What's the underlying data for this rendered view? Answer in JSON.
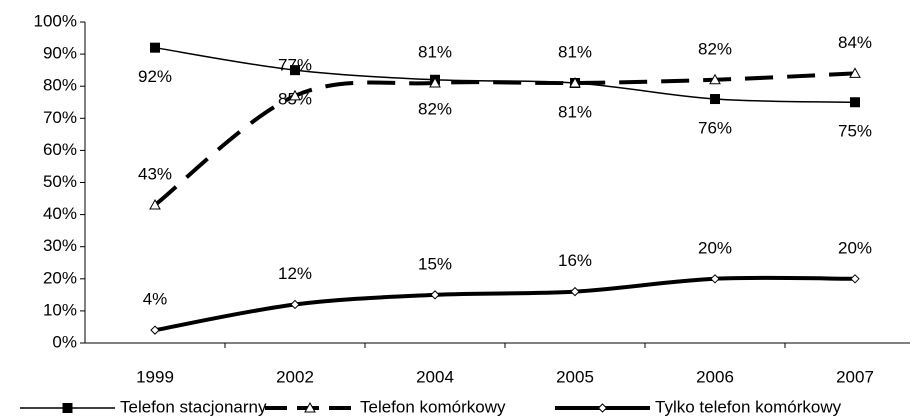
{
  "chart_data": {
    "type": "line",
    "categories": [
      "1999",
      "2002",
      "2004",
      "2005",
      "2006",
      "2007"
    ],
    "series": [
      {
        "name": "Telefon stacjonarny",
        "color": "#000000",
        "values": [
          92,
          85,
          82,
          81,
          76,
          75
        ],
        "value_labels": [
          "92%",
          "85%",
          "82%",
          "81%",
          "76%",
          "75%"
        ]
      },
      {
        "name": "Telefon komórkowy",
        "color": "#000000",
        "values": [
          43,
          77,
          81,
          81,
          82,
          84
        ],
        "value_labels": [
          "43%",
          "77%",
          "81%",
          "81%",
          "82%",
          "84%"
        ]
      },
      {
        "name": "Tylko telefon komórkowy",
        "color": "#000000",
        "values": [
          4,
          12,
          15,
          16,
          20,
          20
        ],
        "value_labels": [
          "4%",
          "12%",
          "15%",
          "16%",
          "20%",
          "20%"
        ]
      }
    ],
    "ylim": [
      0,
      100
    ],
    "yticks": [
      {
        "value": 0,
        "label": "0%"
      },
      {
        "value": 10,
        "label": "10%"
      },
      {
        "value": 20,
        "label": "20%"
      },
      {
        "value": 30,
        "label": "30%"
      },
      {
        "value": 40,
        "label": "40%"
      },
      {
        "value": 50,
        "label": "50%"
      },
      {
        "value": 60,
        "label": "60%"
      },
      {
        "value": 70,
        "label": "70%"
      },
      {
        "value": 80,
        "label": "80%"
      },
      {
        "value": 90,
        "label": "90%"
      },
      {
        "value": 100,
        "label": "100%"
      }
    ],
    "legend": "bottom",
    "grid": false
  }
}
